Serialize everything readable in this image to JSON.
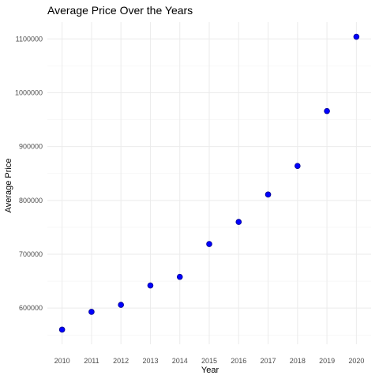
{
  "chart_data": {
    "type": "scatter",
    "title": "Average Price Over the Years",
    "xlabel": "Year",
    "ylabel": "Average Price",
    "x": [
      2010,
      2011,
      2012,
      2013,
      2014,
      2015,
      2016,
      2017,
      2018,
      2019,
      2020
    ],
    "y": [
      560000,
      593000,
      606000,
      642000,
      658000,
      719000,
      760000,
      811000,
      864000,
      966000,
      1104000
    ],
    "x_ticks": [
      "2010",
      "2011",
      "2012",
      "2013",
      "2014",
      "2015",
      "2016",
      "2017",
      "2018",
      "2019",
      "2020"
    ],
    "y_ticks": [
      600000,
      700000,
      800000,
      900000,
      1000000,
      1100000
    ],
    "y_tick_labels": [
      "600000",
      "700000",
      "800000",
      "900000",
      "1000000",
      "1100000"
    ],
    "xlim": [
      2009.5,
      2020.5
    ],
    "ylim": [
      532800,
      1131200
    ],
    "grid": true,
    "point_color": "#0000ff",
    "point_edge_color": "#00008b",
    "background": "#ffffff"
  }
}
